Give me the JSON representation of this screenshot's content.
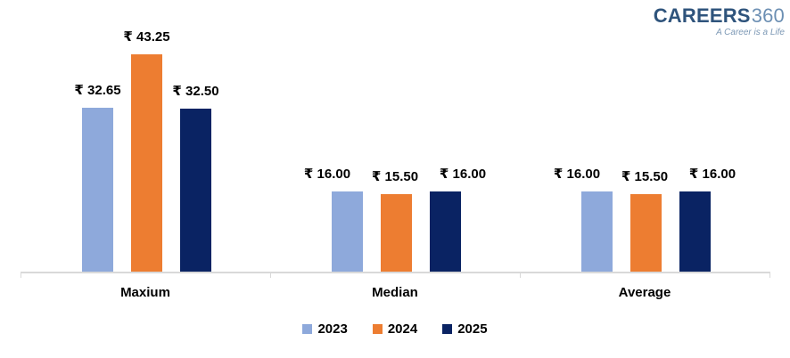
{
  "logo": {
    "brand": "CAREERS",
    "brand_suffix": "360",
    "tagline": "A Career is a Life"
  },
  "colors": {
    "axis": "#D9D9D9",
    "label_text": "#000000",
    "logo_brand": "#2F547C",
    "logo_suffix": "#6C8FB3",
    "logo_tagline": "#7C98B5"
  },
  "chart_data": {
    "type": "bar",
    "title": "",
    "currency_symbol": "₹",
    "categories": [
      "Maxium",
      "Median",
      "Average"
    ],
    "series": [
      {
        "name": "2023",
        "color": "#8EA9DB",
        "values": [
          32.65,
          16.0,
          16.0
        ]
      },
      {
        "name": "2024",
        "color": "#ED7D31",
        "values": [
          43.25,
          15.5,
          15.5
        ]
      },
      {
        "name": "2025",
        "color": "#0A2363",
        "values": [
          32.5,
          16.0,
          16.0
        ]
      }
    ],
    "value_label_format": "₹ {value:.2f}",
    "ylim": [
      0,
      45
    ],
    "grid": false,
    "y_axis_hidden": true,
    "legend_position": "bottom"
  }
}
